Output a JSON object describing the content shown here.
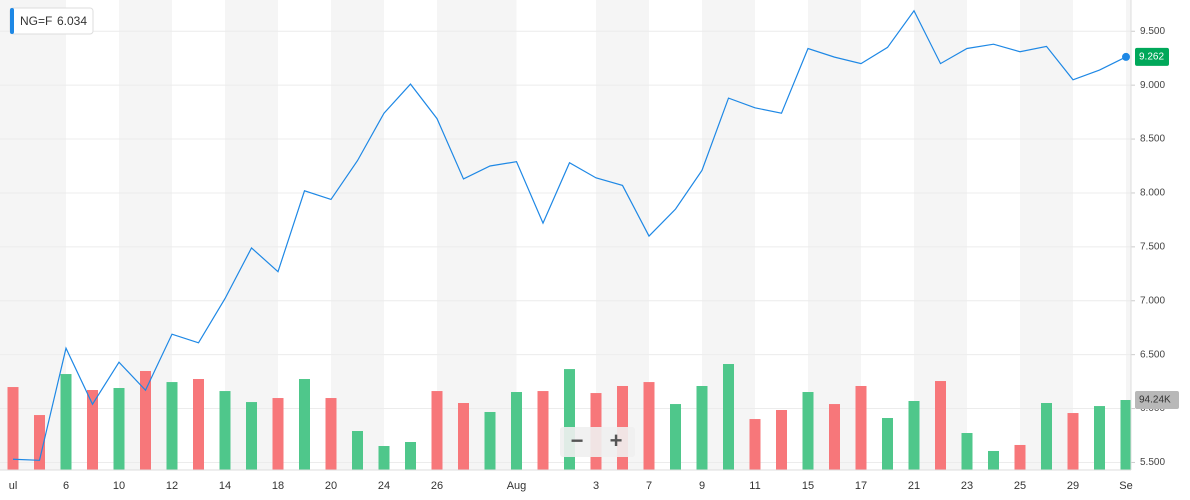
{
  "chart_data": {
    "type": "line",
    "legend_symbol": "NG=F",
    "legend_value": "6.034",
    "categories": [
      "ul",
      null,
      "6",
      null,
      "10",
      null,
      "12",
      null,
      "14",
      null,
      "18",
      null,
      "20",
      null,
      "24",
      null,
      "26",
      null,
      null,
      "Aug",
      null,
      null,
      "3",
      null,
      "7",
      null,
      "9",
      null,
      "11",
      null,
      "15",
      null,
      "17",
      null,
      "21",
      null,
      "23",
      null,
      "25",
      null,
      "29",
      null,
      "Se"
    ],
    "series": [
      {
        "name": "NG=F",
        "color": "#1e88e5",
        "values": [
          5.53,
          5.52,
          6.56,
          6.04,
          6.43,
          6.17,
          6.69,
          6.61,
          7.02,
          7.49,
          7.27,
          8.02,
          7.94,
          8.3,
          8.74,
          9.01,
          8.69,
          8.13,
          8.25,
          8.29,
          7.72,
          8.28,
          8.14,
          8.07,
          7.6,
          7.85,
          8.21,
          8.88,
          8.79,
          8.74,
          9.34,
          9.26,
          9.2,
          9.35,
          9.69,
          9.2,
          9.34,
          9.38,
          9.31,
          9.36,
          9.05,
          9.14,
          9.262
        ],
        "value_labels": [
          null,
          null,
          null,
          null,
          null,
          null,
          null,
          null,
          null,
          null,
          null,
          null,
          null,
          null,
          null,
          null,
          null,
          null,
          null,
          null,
          null,
          null,
          null,
          null,
          null,
          null,
          null,
          null,
          null,
          null,
          null,
          null,
          null,
          null,
          null,
          null,
          null,
          null,
          null,
          null,
          null,
          null,
          "9.262"
        ],
        "label_color": "#00a85a"
      },
      {
        "name": "Volume",
        "type": "bar",
        "axis": "y2",
        "values": [
          111700,
          74000,
          129200,
          107700,
          110400,
          133300,
          118400,
          122500,
          106300,
          91500,
          96900,
          122500,
          96900,
          52500,
          32300,
          37700,
          106300,
          90200,
          78100,
          105000,
          106300,
          135900,
          103600,
          113100,
          118400,
          88800,
          113100,
          142700,
          68600,
          80800,
          105000,
          88800,
          113100,
          70000,
          92900,
          119800,
          49800,
          25600,
          33700,
          90200,
          76700,
          86100,
          94240
        ],
        "value_labels": [
          null,
          null,
          null,
          null,
          null,
          null,
          null,
          null,
          null,
          null,
          null,
          null,
          null,
          null,
          null,
          null,
          null,
          null,
          null,
          null,
          null,
          null,
          null,
          null,
          null,
          null,
          null,
          null,
          null,
          null,
          null,
          null,
          null,
          null,
          null,
          null,
          null,
          null,
          null,
          null,
          null,
          null,
          "94.24K"
        ],
        "colors": [
          "#f7777a",
          "#f7777a",
          "#4fc78b",
          "#f7777a",
          "#4fc78b",
          "#f7777a",
          "#4fc78b",
          "#f7777a",
          "#4fc78b",
          "#4fc78b",
          "#f7777a",
          "#4fc78b",
          "#f7777a",
          "#4fc78b",
          "#4fc78b",
          "#4fc78b",
          "#f7777a",
          "#f7777a",
          "#4fc78b",
          "#4fc78b",
          "#f7777a",
          "#4fc78b",
          "#f7777a",
          "#f7777a",
          "#f7777a",
          "#4fc78b",
          "#4fc78b",
          "#4fc78b",
          "#f7777a",
          "#f7777a",
          "#4fc78b",
          "#f7777a",
          "#f7777a",
          "#4fc78b",
          "#4fc78b",
          "#f7777a",
          "#4fc78b",
          "#4fc78b",
          "#f7777a",
          "#4fc78b",
          "#f7777a",
          "#4fc78b",
          "#4fc78b"
        ],
        "label_color": "#b8b8b8"
      }
    ],
    "ylim": [
      5.43,
      9.79
    ],
    "yticks": [
      {
        "value": 5.5,
        "label": "5.500"
      },
      {
        "value": 6,
        "label": "6.000"
      },
      {
        "value": 6.5,
        "label": "6.500"
      },
      {
        "value": 7,
        "label": "7.000"
      },
      {
        "value": 7.5,
        "label": "7.500"
      },
      {
        "value": 8,
        "label": "8.000"
      },
      {
        "value": 8.5,
        "label": "8.500"
      },
      {
        "value": 9,
        "label": "9.000"
      },
      {
        "value": 9.5,
        "label": "9.500"
      }
    ],
    "y2lim": [
      0,
      632800
    ],
    "grid": true,
    "zoom_out": "−",
    "zoom_in": "+"
  }
}
